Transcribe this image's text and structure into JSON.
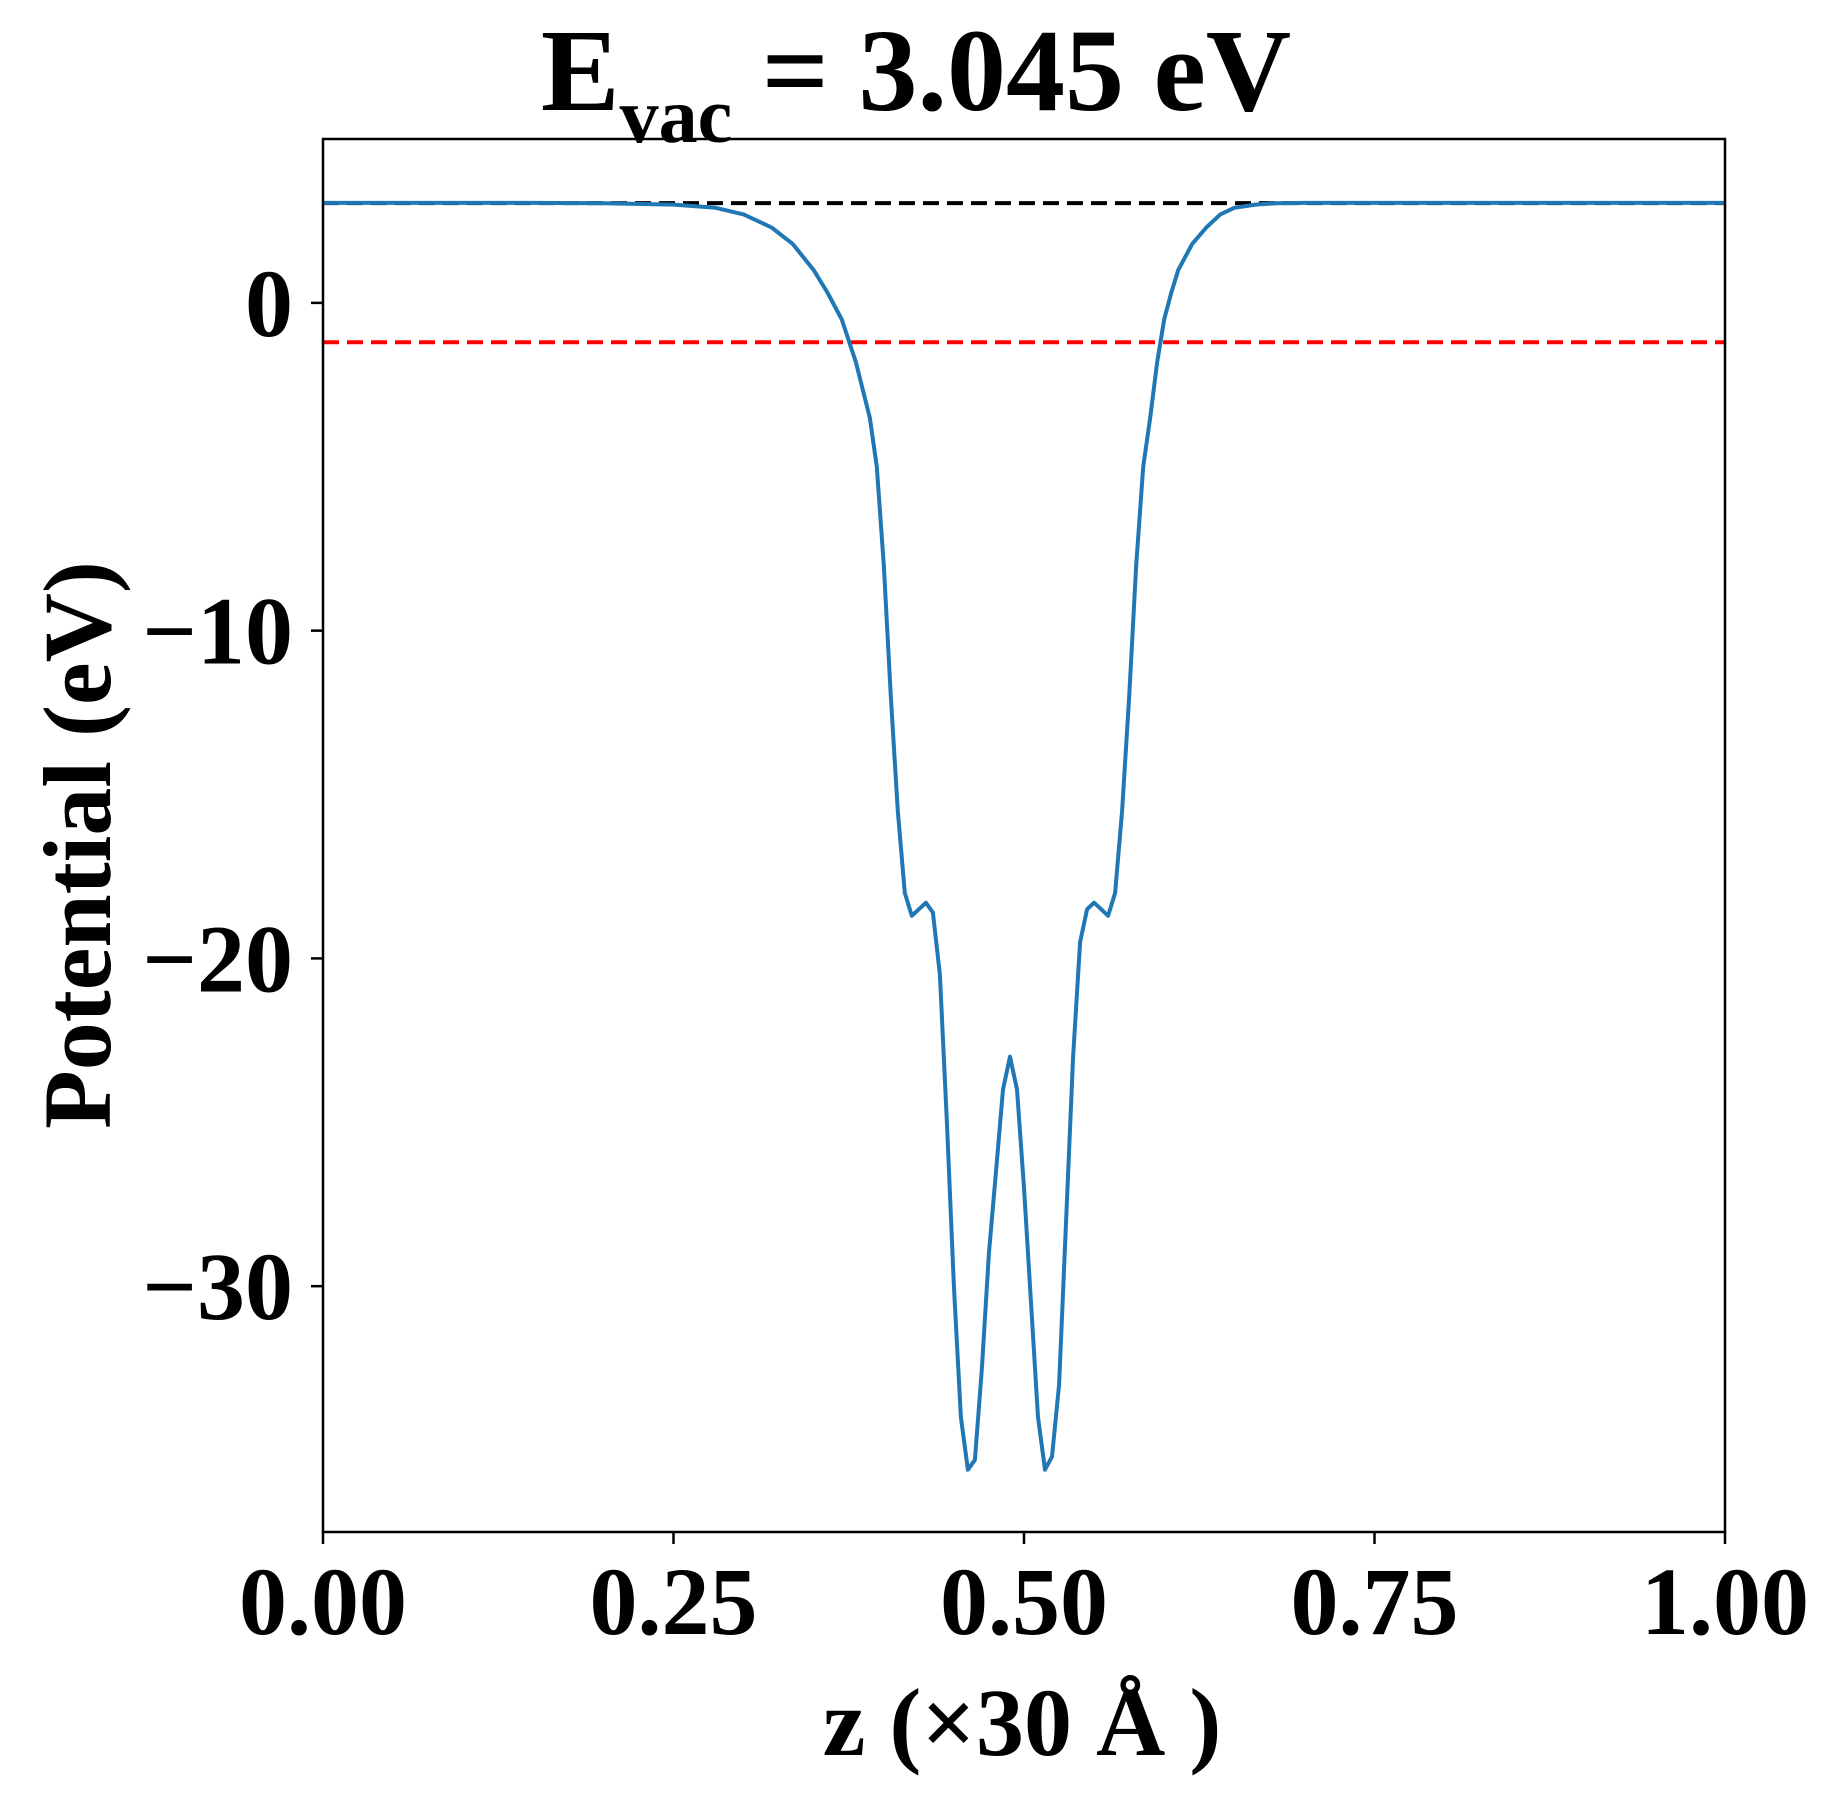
{
  "chart_data": {
    "type": "line",
    "title": {
      "main": "E",
      "subscript": "vac",
      "rest": " = 3.045 eV"
    },
    "xlabel": "z (×30 Å )",
    "ylabel": "Potential (eV)",
    "xlim": [
      0.0,
      1.0
    ],
    "ylim": [
      -37.5,
      5.0
    ],
    "x_ticks": [
      "0.00",
      "0.25",
      "0.50",
      "0.75",
      "1.00"
    ],
    "x_tick_values": [
      0.0,
      0.25,
      0.5,
      0.75,
      1.0
    ],
    "y_ticks": [
      "0",
      "−10",
      "−20",
      "−30"
    ],
    "y_tick_values": [
      0,
      -10,
      -20,
      -30
    ],
    "grid": false,
    "reference_lines": [
      {
        "y": 3.045,
        "color": "#000000",
        "style": "dashed"
      },
      {
        "y": -1.2,
        "color": "#ff0000",
        "style": "dashed"
      }
    ],
    "series": [
      {
        "color": "#1f77b4",
        "x": [
          0.0,
          0.05,
          0.1,
          0.15,
          0.2,
          0.25,
          0.28,
          0.3,
          0.32,
          0.335,
          0.35,
          0.36,
          0.37,
          0.38,
          0.39,
          0.395,
          0.4,
          0.405,
          0.41,
          0.415,
          0.42,
          0.425,
          0.43,
          0.435,
          0.44,
          0.445,
          0.45,
          0.455,
          0.46,
          0.465,
          0.47,
          0.475,
          0.48,
          0.485,
          0.49,
          0.495,
          0.5,
          0.505,
          0.51,
          0.515,
          0.52,
          0.525,
          0.53,
          0.535,
          0.54,
          0.545,
          0.55,
          0.555,
          0.56,
          0.565,
          0.57,
          0.575,
          0.58,
          0.585,
          0.59,
          0.595,
          0.6,
          0.605,
          0.61,
          0.62,
          0.63,
          0.64,
          0.65,
          0.665,
          0.68,
          0.7,
          0.72,
          0.75,
          0.8,
          0.85,
          0.9,
          0.95,
          1.0
        ],
        "y": [
          3.05,
          3.05,
          3.05,
          3.05,
          3.04,
          3.0,
          2.9,
          2.7,
          2.3,
          1.8,
          1.0,
          0.3,
          -0.5,
          -1.8,
          -3.5,
          -5.0,
          -8.0,
          -12.0,
          -15.5,
          -18.0,
          -18.7,
          -18.5,
          -18.3,
          -18.6,
          -20.5,
          -25.0,
          -30.0,
          -34.0,
          -35.6,
          -35.3,
          -32.5,
          -29.0,
          -26.5,
          -24.0,
          -23.0,
          -24.0,
          -27.0,
          -30.5,
          -34.0,
          -35.6,
          -35.2,
          -33.0,
          -28.0,
          -23.0,
          -19.5,
          -18.5,
          -18.3,
          -18.5,
          -18.7,
          -18.0,
          -15.5,
          -12.0,
          -8.0,
          -5.0,
          -3.5,
          -1.8,
          -0.5,
          0.3,
          1.0,
          1.8,
          2.3,
          2.7,
          2.9,
          3.0,
          3.04,
          3.05,
          3.05,
          3.05,
          3.05,
          3.05,
          3.05,
          3.05,
          3.05
        ]
      }
    ]
  }
}
